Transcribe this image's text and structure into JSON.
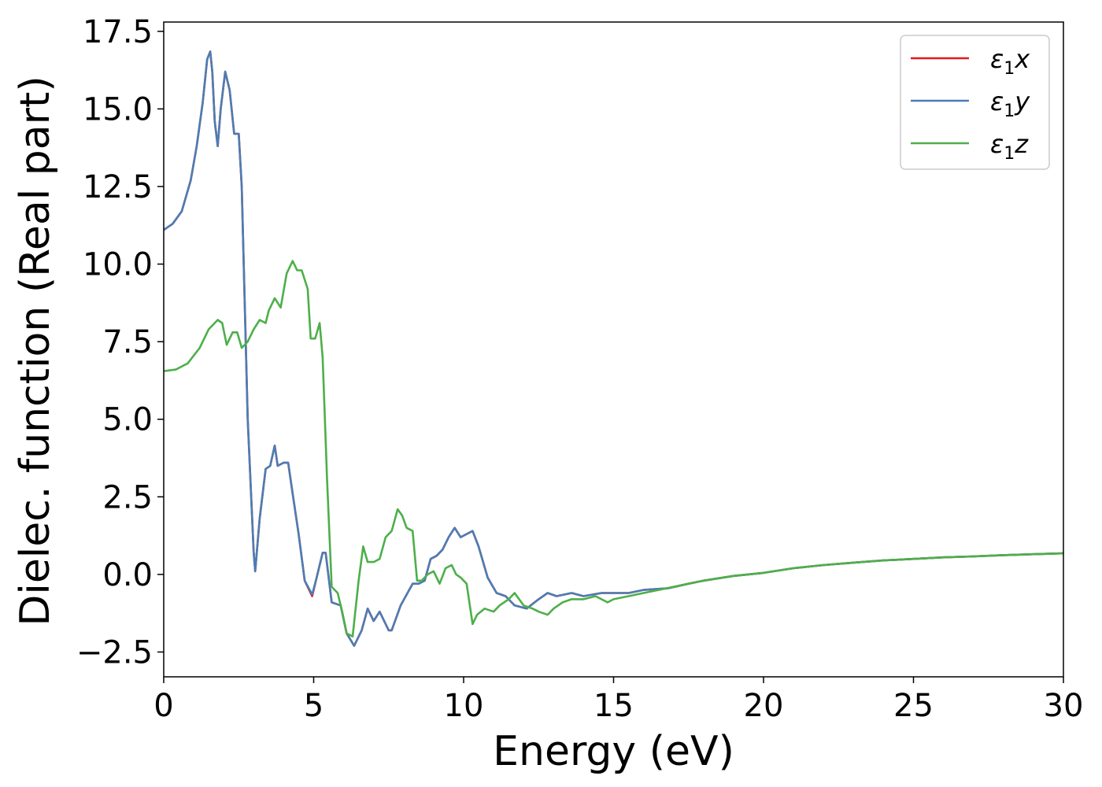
{
  "chart_data": {
    "type": "line",
    "title": "",
    "xlabel": "Energy (eV)",
    "ylabel": "Dielec. function (Real part)",
    "xlim": [
      0,
      30
    ],
    "ylim": [
      -3.3,
      17.8
    ],
    "xticks": [
      0,
      5,
      10,
      15,
      20,
      25,
      30
    ],
    "xtick_labels": [
      "0",
      "5",
      "10",
      "15",
      "20",
      "25",
      "30"
    ],
    "yticks": [
      -2.5,
      0.0,
      2.5,
      5.0,
      7.5,
      10.0,
      12.5,
      15.0,
      17.5
    ],
    "ytick_labels": [
      "−2.5",
      "0.0",
      "2.5",
      "5.0",
      "7.5",
      "10.0",
      "12.5",
      "15.0",
      "17.5"
    ],
    "grid": false,
    "legend_position": "top-right",
    "series": [
      {
        "name": "ε₁x",
        "legend_base": "ε",
        "legend_sub": "1",
        "legend_var": "x",
        "color": "#e41a1c",
        "x": [
          0,
          0.3,
          0.6,
          0.9,
          1.1,
          1.3,
          1.45,
          1.55,
          1.62,
          1.7,
          1.8,
          1.9,
          2.05,
          2.2,
          2.35,
          2.5,
          2.6,
          2.8,
          3.0,
          3.05,
          3.2,
          3.4,
          3.55,
          3.7,
          3.8,
          4.0,
          4.15,
          4.3,
          4.5,
          4.7,
          4.95,
          5.1,
          5.3,
          5.4,
          5.6,
          5.9,
          6.1,
          6.35,
          6.6,
          6.8,
          7.0,
          7.2,
          7.5,
          7.6,
          7.9,
          8.3,
          8.5,
          8.7,
          8.9,
          9.1,
          9.3,
          9.5,
          9.7,
          9.9,
          10.1,
          10.3,
          10.5,
          10.8,
          11.1,
          11.4,
          11.7,
          12.1,
          12.5,
          12.8,
          13.1,
          13.6,
          14.0,
          14.6,
          15.0,
          15.5,
          16.0,
          16.8,
          17.5,
          18.0,
          19.0,
          20.0,
          21.0,
          22.0,
          23.0,
          24.0,
          25.0,
          26.0,
          27.0,
          28.0,
          29.0,
          30.0
        ],
        "y": [
          11.1,
          11.3,
          11.7,
          12.7,
          13.8,
          15.2,
          16.6,
          16.85,
          16.2,
          14.6,
          13.8,
          15.0,
          16.2,
          15.6,
          14.2,
          14.2,
          12.5,
          5.0,
          0.7,
          0.1,
          1.8,
          3.4,
          3.5,
          4.15,
          3.5,
          3.6,
          3.6,
          2.6,
          1.3,
          -0.2,
          -0.7,
          -0.1,
          0.7,
          0.7,
          -0.9,
          -1.0,
          -1.9,
          -2.3,
          -1.8,
          -1.1,
          -1.5,
          -1.2,
          -1.8,
          -1.8,
          -1.0,
          -0.3,
          -0.3,
          -0.2,
          0.5,
          0.6,
          0.8,
          1.2,
          1.5,
          1.2,
          1.3,
          1.4,
          0.9,
          -0.1,
          -0.6,
          -0.7,
          -1.0,
          -1.1,
          -0.8,
          -0.6,
          -0.7,
          -0.6,
          -0.7,
          -0.6,
          -0.6,
          -0.6,
          -0.5,
          -0.45,
          -0.3,
          -0.2,
          -0.05,
          0.05,
          0.2,
          0.3,
          0.38,
          0.45,
          0.5,
          0.55,
          0.58,
          0.62,
          0.65,
          0.68
        ]
      },
      {
        "name": "ε₁y",
        "legend_base": "ε",
        "legend_sub": "1",
        "legend_var": "y",
        "color": "#4b7db4",
        "x": [
          0,
          0.3,
          0.6,
          0.9,
          1.1,
          1.3,
          1.45,
          1.55,
          1.62,
          1.7,
          1.8,
          1.9,
          2.05,
          2.2,
          2.35,
          2.5,
          2.6,
          2.8,
          3.0,
          3.05,
          3.2,
          3.4,
          3.55,
          3.7,
          3.8,
          4.0,
          4.15,
          4.3,
          4.5,
          4.7,
          4.95,
          5.1,
          5.3,
          5.4,
          5.6,
          5.9,
          6.1,
          6.35,
          6.6,
          6.8,
          7.0,
          7.2,
          7.5,
          7.6,
          7.9,
          8.3,
          8.5,
          8.7,
          8.9,
          9.1,
          9.3,
          9.5,
          9.7,
          9.9,
          10.1,
          10.3,
          10.5,
          10.8,
          11.1,
          11.4,
          11.7,
          12.1,
          12.5,
          12.8,
          13.1,
          13.6,
          14.0,
          14.6,
          15.0,
          15.5,
          16.0,
          16.8,
          17.5,
          18.0,
          19.0,
          20.0,
          21.0,
          22.0,
          23.0,
          24.0,
          25.0,
          26.0,
          27.0,
          28.0,
          29.0,
          30.0
        ],
        "y": [
          11.1,
          11.3,
          11.7,
          12.7,
          13.8,
          15.2,
          16.6,
          16.85,
          16.2,
          14.6,
          13.8,
          15.0,
          16.2,
          15.6,
          14.2,
          14.2,
          12.5,
          5.0,
          0.7,
          0.1,
          1.8,
          3.4,
          3.5,
          4.15,
          3.5,
          3.6,
          3.6,
          2.6,
          1.3,
          -0.2,
          -0.65,
          -0.1,
          0.7,
          0.7,
          -0.9,
          -1.0,
          -1.9,
          -2.3,
          -1.8,
          -1.1,
          -1.5,
          -1.2,
          -1.8,
          -1.8,
          -1.0,
          -0.3,
          -0.3,
          -0.2,
          0.5,
          0.6,
          0.8,
          1.2,
          1.5,
          1.2,
          1.3,
          1.4,
          0.9,
          -0.1,
          -0.6,
          -0.7,
          -1.0,
          -1.1,
          -0.8,
          -0.6,
          -0.7,
          -0.6,
          -0.7,
          -0.6,
          -0.6,
          -0.6,
          -0.5,
          -0.45,
          -0.3,
          -0.2,
          -0.05,
          0.05,
          0.2,
          0.3,
          0.38,
          0.45,
          0.5,
          0.55,
          0.58,
          0.62,
          0.65,
          0.68
        ]
      },
      {
        "name": "ε₁z",
        "legend_base": "ε",
        "legend_sub": "1",
        "legend_var": "z",
        "color": "#4daf4a",
        "x": [
          0,
          0.4,
          0.8,
          1.2,
          1.5,
          1.8,
          1.95,
          2.1,
          2.3,
          2.45,
          2.6,
          2.8,
          3.0,
          3.2,
          3.4,
          3.5,
          3.7,
          3.9,
          4.1,
          4.3,
          4.45,
          4.6,
          4.8,
          4.9,
          5.05,
          5.2,
          5.3,
          5.45,
          5.6,
          5.8,
          5.95,
          6.1,
          6.3,
          6.5,
          6.65,
          6.8,
          7.0,
          7.2,
          7.4,
          7.6,
          7.8,
          7.95,
          8.1,
          8.3,
          8.45,
          8.6,
          8.8,
          9.0,
          9.2,
          9.4,
          9.6,
          9.75,
          9.9,
          10.1,
          10.3,
          10.45,
          10.7,
          11.0,
          11.2,
          11.5,
          11.7,
          12.0,
          12.3,
          12.5,
          12.8,
          13.0,
          13.3,
          13.6,
          14.0,
          14.4,
          14.8,
          15.0,
          15.5,
          16.0,
          16.5,
          17.0,
          17.5,
          18.0,
          19.0,
          20.0,
          21.0,
          22.0,
          23.0,
          24.0,
          25.0,
          26.0,
          27.0,
          28.0,
          29.0,
          30.0
        ],
        "y": [
          6.55,
          6.6,
          6.8,
          7.3,
          7.9,
          8.2,
          8.1,
          7.4,
          7.8,
          7.8,
          7.3,
          7.5,
          7.9,
          8.2,
          8.1,
          8.5,
          8.9,
          8.6,
          9.7,
          10.1,
          9.8,
          9.8,
          9.2,
          7.6,
          7.6,
          8.1,
          7.0,
          3.0,
          -0.4,
          -0.6,
          -1.2,
          -1.9,
          -2.0,
          -0.2,
          0.9,
          0.4,
          0.4,
          0.5,
          1.2,
          1.4,
          2.1,
          1.9,
          1.5,
          1.4,
          -0.2,
          -0.2,
          0.0,
          0.1,
          -0.3,
          0.2,
          0.3,
          0.0,
          -0.1,
          -0.3,
          -1.6,
          -1.3,
          -1.1,
          -1.2,
          -1.0,
          -0.8,
          -0.6,
          -1.0,
          -1.1,
          -1.2,
          -1.3,
          -1.1,
          -0.9,
          -0.8,
          -0.8,
          -0.7,
          -0.9,
          -0.8,
          -0.7,
          -0.6,
          -0.5,
          -0.4,
          -0.3,
          -0.2,
          -0.05,
          0.05,
          0.2,
          0.3,
          0.38,
          0.45,
          0.5,
          0.55,
          0.58,
          0.62,
          0.65,
          0.68
        ]
      }
    ]
  }
}
